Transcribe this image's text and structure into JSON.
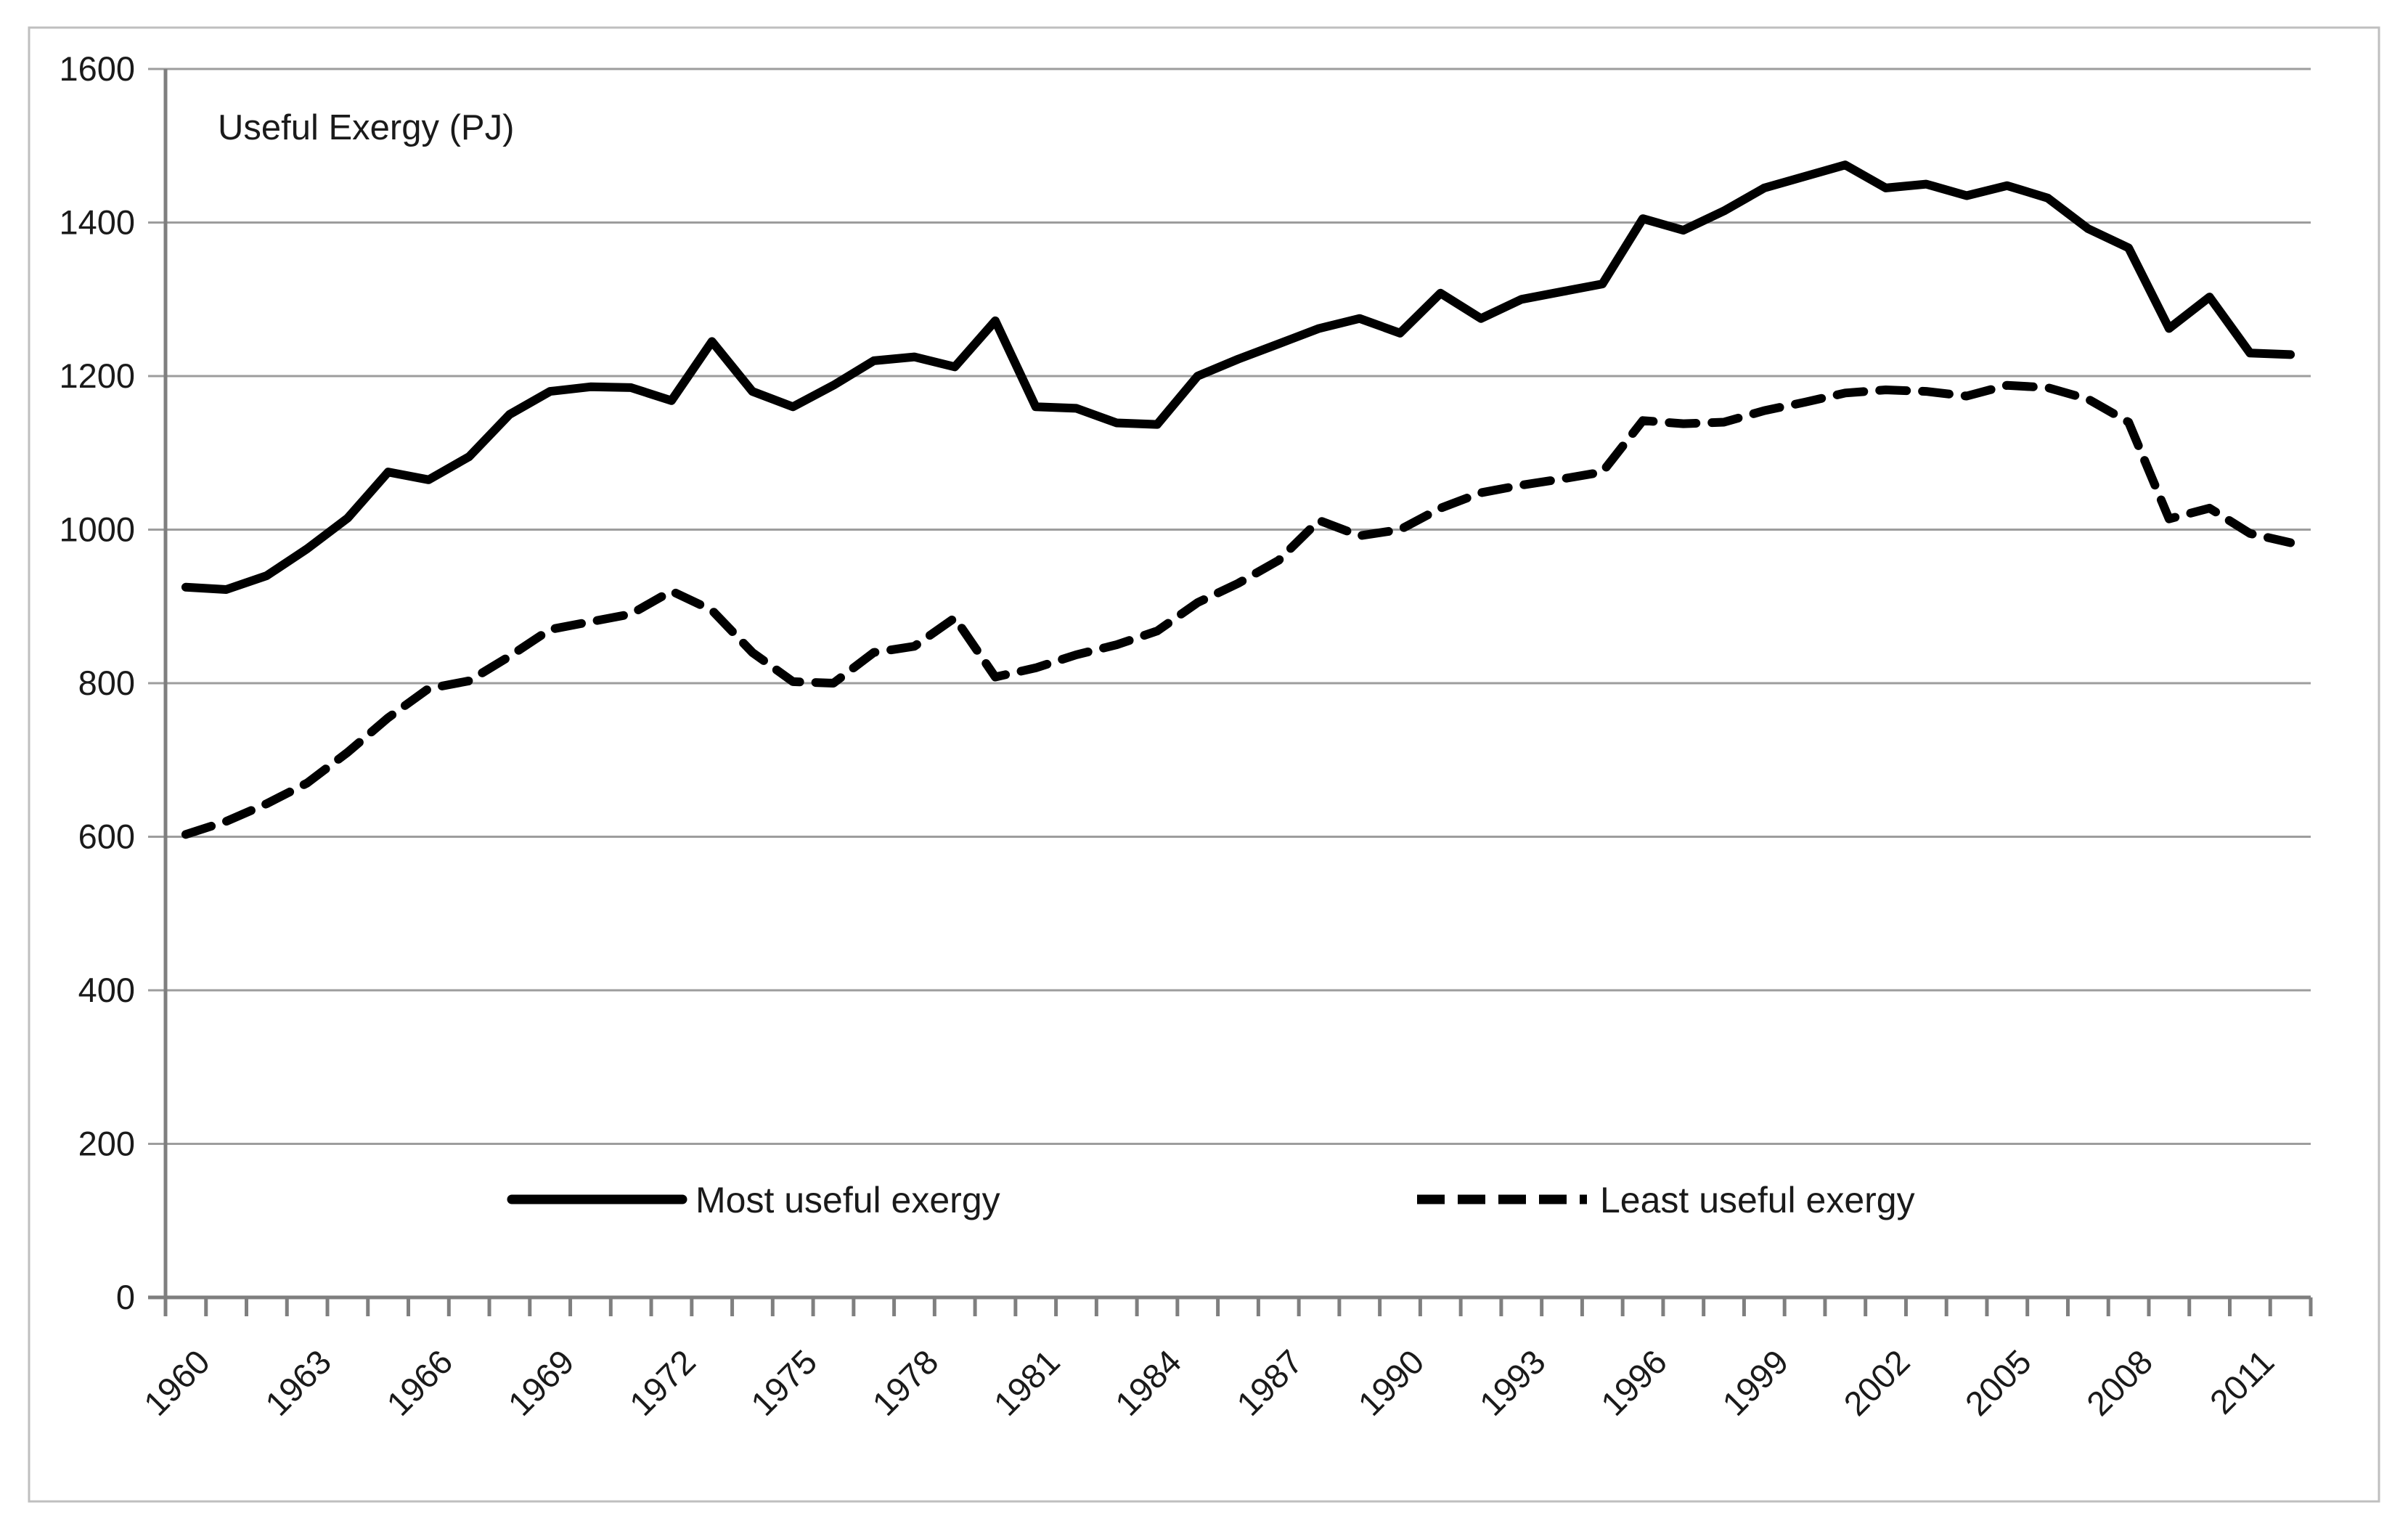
{
  "chart_data": {
    "type": "line",
    "title": "Useful Exergy (PJ)",
    "x": [
      1960,
      1961,
      1962,
      1963,
      1964,
      1965,
      1966,
      1967,
      1968,
      1969,
      1970,
      1971,
      1972,
      1973,
      1974,
      1975,
      1976,
      1977,
      1978,
      1979,
      1980,
      1981,
      1982,
      1983,
      1984,
      1985,
      1986,
      1987,
      1988,
      1989,
      1990,
      1991,
      1992,
      1993,
      1994,
      1995,
      1996,
      1997,
      1998,
      1999,
      2000,
      2001,
      2002,
      2003,
      2004,
      2005,
      2006,
      2007,
      2008,
      2009,
      2010,
      2011,
      2012
    ],
    "x_tick_labels": [
      "1960",
      "1963",
      "1966",
      "1969",
      "1972",
      "1975",
      "1978",
      "1981",
      "1984",
      "1987",
      "1990",
      "1993",
      "1996",
      "1999",
      "2002",
      "2005",
      "2008",
      "2011"
    ],
    "y_ticks": [
      0,
      200,
      400,
      600,
      800,
      1000,
      1200,
      1400,
      1600
    ],
    "ylim": [
      0,
      1600
    ],
    "grid": "horizontal",
    "legend_position": "inside-bottom",
    "series": [
      {
        "name": "Most useful exergy",
        "style": "solid",
        "color": "#000000",
        "values": [
          925,
          922,
          940,
          975,
          1015,
          1075,
          1065,
          1095,
          1150,
          1180,
          1186,
          1185,
          1168,
          1245,
          1180,
          1160,
          1188,
          1220,
          1225,
          1212,
          1272,
          1160,
          1158,
          1139,
          1137,
          1200,
          1222,
          1242,
          1262,
          1275,
          1256,
          1308,
          1275,
          1300,
          1310,
          1320,
          1405,
          1390,
          1415,
          1445,
          1460,
          1475,
          1445,
          1450,
          1435,
          1448,
          1432,
          1392,
          1367,
          1262,
          1303,
          1230,
          1228
        ]
      },
      {
        "name": "Least useful exergy",
        "style": "dashed",
        "color": "#000000",
        "values": [
          603,
          620,
          643,
          670,
          710,
          755,
          793,
          803,
          835,
          870,
          880,
          890,
          920,
          895,
          840,
          802,
          800,
          840,
          848,
          885,
          808,
          820,
          837,
          850,
          868,
          905,
          930,
          960,
          1012,
          992,
          1000,
          1028,
          1048,
          1058,
          1066,
          1075,
          1142,
          1138,
          1140,
          1155,
          1166,
          1178,
          1182,
          1180,
          1174,
          1188,
          1185,
          1170,
          1140,
          1014,
          1028,
          995,
          983
        ]
      }
    ]
  },
  "colors": {
    "background": "#ffffff",
    "border": "#bfbfbf",
    "grid": "#9d9d9d",
    "axis": "#7f7f7f",
    "text": "#1a1a1a",
    "line": "#000000"
  }
}
